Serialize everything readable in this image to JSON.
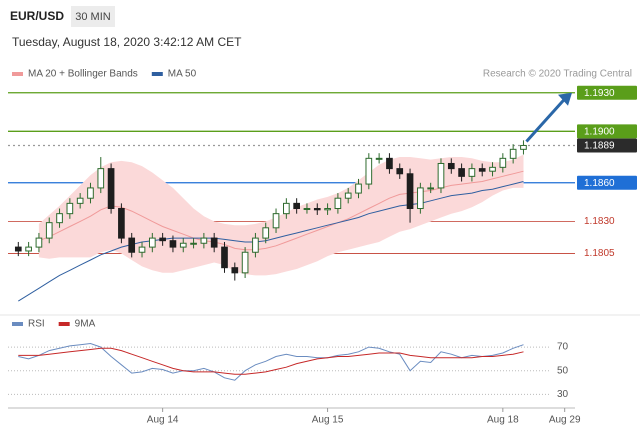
{
  "header": {
    "pair": "EUR/USD",
    "timeframe": "30 MIN",
    "timestamp": "Tuesday, August 18, 2020 3:42:12 AM CET"
  },
  "chart_data": [
    {
      "type": "candlestick",
      "annotation": "Research © 2020 Trading Central",
      "up_color": "#2e6b2e",
      "down_color": "#1e1e1e",
      "open": [
        1.181,
        1.1807,
        1.181,
        1.1817,
        1.1829,
        1.1836,
        1.1844,
        1.1848,
        1.1856,
        1.1871,
        1.184,
        1.1817,
        1.1806,
        1.181,
        1.1817,
        1.1815,
        1.181,
        1.1813,
        1.1813,
        1.1817,
        1.181,
        1.1794,
        1.179,
        1.1806,
        1.1817,
        1.1825,
        1.1836,
        1.1844,
        1.184,
        1.184,
        1.1839,
        1.184,
        1.1848,
        1.1852,
        1.1859,
        1.1879,
        1.1879,
        1.1871,
        1.1867,
        1.184,
        1.1856,
        1.1856,
        1.1875,
        1.1871,
        1.1865,
        1.1871,
        1.1869,
        1.1872,
        1.1879,
        1.1886
      ],
      "high": [
        1.1814,
        1.1814,
        1.1821,
        1.1833,
        1.184,
        1.1848,
        1.1852,
        1.186,
        1.188,
        1.1875,
        1.1844,
        1.1821,
        1.1814,
        1.1821,
        1.1821,
        1.1819,
        1.1817,
        1.1817,
        1.1821,
        1.1821,
        1.1814,
        1.1798,
        1.181,
        1.1821,
        1.1829,
        1.184,
        1.1848,
        1.1848,
        1.1844,
        1.1844,
        1.1844,
        1.1852,
        1.1856,
        1.1863,
        1.1883,
        1.1883,
        1.1883,
        1.1875,
        1.1871,
        1.186,
        1.186,
        1.1879,
        1.1879,
        1.1875,
        1.1875,
        1.1875,
        1.1876,
        1.1883,
        1.189,
        1.1893
      ],
      "low": [
        1.1803,
        1.1803,
        1.1806,
        1.1813,
        1.1825,
        1.1832,
        1.184,
        1.1844,
        1.1852,
        1.1836,
        1.1813,
        1.1802,
        1.1802,
        1.1806,
        1.1811,
        1.1806,
        1.1806,
        1.1809,
        1.1809,
        1.1806,
        1.179,
        1.1784,
        1.1786,
        1.1802,
        1.1813,
        1.1821,
        1.1832,
        1.1836,
        1.1836,
        1.1835,
        1.1835,
        1.1836,
        1.1844,
        1.1848,
        1.1855,
        1.1875,
        1.1867,
        1.1863,
        1.1829,
        1.1836,
        1.1852,
        1.1852,
        1.1867,
        1.1861,
        1.1861,
        1.1865,
        1.1865,
        1.1868,
        1.1875,
        1.1882
      ],
      "close": [
        1.1807,
        1.181,
        1.1817,
        1.1829,
        1.1836,
        1.1844,
        1.1848,
        1.1856,
        1.1871,
        1.184,
        1.1817,
        1.1806,
        1.181,
        1.1817,
        1.1815,
        1.181,
        1.1813,
        1.1813,
        1.1817,
        1.181,
        1.1794,
        1.179,
        1.1806,
        1.1817,
        1.1825,
        1.1836,
        1.1844,
        1.184,
        1.184,
        1.1839,
        1.184,
        1.1848,
        1.1852,
        1.1859,
        1.1879,
        1.1879,
        1.1871,
        1.1867,
        1.184,
        1.1856,
        1.1856,
        1.1875,
        1.1871,
        1.1865,
        1.1871,
        1.1869,
        1.1872,
        1.1879,
        1.1886,
        1.1889
      ],
      "series": [
        {
          "name": "MA 20 + Bollinger Bands",
          "color": "#f09a9a",
          "band_color": "#fbd9d9",
          "values": [
            null,
            null,
            1.1815,
            1.1818,
            1.1822,
            1.1826,
            1.183,
            1.1834,
            1.1839,
            1.1842,
            1.1841,
            1.1838,
            1.1834,
            1.183,
            1.1826,
            1.1823,
            1.182,
            1.1817,
            1.1815,
            1.1814,
            1.1812,
            1.1809,
            1.1808,
            1.1808,
            1.1809,
            1.1811,
            1.1814,
            1.1817,
            1.182,
            1.1823,
            1.1826,
            1.1829,
            1.1832,
            1.1836,
            1.184,
            1.1844,
            1.1848,
            1.1851,
            1.1852,
            1.1853,
            1.1854,
            1.1856,
            1.1858,
            1.1859,
            1.186,
            1.1861,
            1.1863,
            1.1865,
            1.1867,
            1.1869
          ],
          "upper": [
            null,
            null,
            1.1828,
            1.1835,
            1.1842,
            1.185,
            1.1858,
            1.1866,
            1.1872,
            1.1876,
            1.1877,
            1.1876,
            1.1873,
            1.1868,
            1.1862,
            1.1856,
            1.1848,
            1.184,
            1.1834,
            1.183,
            1.1828,
            1.1827,
            1.1827,
            1.1828,
            1.183,
            1.1833,
            1.1837,
            1.1841,
            1.1844,
            1.1847,
            1.1849,
            1.1852,
            1.1856,
            1.1862,
            1.1868,
            1.1874,
            1.1878,
            1.188,
            1.188,
            1.1879,
            1.1878,
            1.1879,
            1.188,
            1.188,
            1.1879,
            1.1877,
            1.1876,
            1.1876,
            1.1878,
            1.1882
          ],
          "lower": [
            null,
            null,
            1.1802,
            1.1801,
            1.1802,
            1.1802,
            1.1802,
            1.1802,
            1.1806,
            1.1808,
            1.1805,
            1.18,
            1.1795,
            1.1792,
            1.179,
            1.179,
            1.1792,
            1.1794,
            1.1796,
            1.1798,
            1.1796,
            1.1791,
            1.1789,
            1.1788,
            1.1788,
            1.1789,
            1.1791,
            1.1793,
            1.1796,
            1.1799,
            1.1803,
            1.1806,
            1.1808,
            1.181,
            1.1812,
            1.1814,
            1.1818,
            1.1822,
            1.1824,
            1.1827,
            1.183,
            1.1833,
            1.1836,
            1.1838,
            1.1841,
            1.1845,
            1.185,
            1.1854,
            1.1856,
            1.1856
          ]
        },
        {
          "name": "MA 50",
          "color": "#2f5fa0",
          "values": [
            1.1768,
            1.1773,
            1.1778,
            1.1783,
            1.1788,
            1.1792,
            1.1796,
            1.18,
            1.1804,
            1.1807,
            1.181,
            1.1812,
            1.1814,
            1.1815,
            1.1816,
            1.1817,
            1.1817,
            1.1817,
            1.1817,
            1.1817,
            1.1816,
            1.1815,
            1.1814,
            1.1814,
            1.1815,
            1.1817,
            1.1819,
            1.1821,
            1.1823,
            1.1825,
            1.1827,
            1.1829,
            1.1831,
            1.1833,
            1.1836,
            1.1838,
            1.184,
            1.1842,
            1.1843,
            1.1844,
            1.1846,
            1.1848,
            1.185,
            1.1851,
            1.1852,
            1.1854,
            1.1855,
            1.1857,
            1.1859,
            1.1861
          ]
        }
      ],
      "levels": [
        {
          "value": 1.193,
          "label": "1.1930",
          "color": "#5a9e1a",
          "style": "box"
        },
        {
          "value": 1.19,
          "label": "1.1900",
          "color": "#5a9e1a",
          "style": "box"
        },
        {
          "value": 1.1889,
          "label": "1.1889",
          "color": "#2b2b2b",
          "style": "current"
        },
        {
          "value": 1.186,
          "label": "1.1860",
          "color": "#1f6fd6",
          "style": "box"
        },
        {
          "value": 1.183,
          "label": "1.1830",
          "color": "#c0392b",
          "style": "text"
        },
        {
          "value": 1.1805,
          "label": "1.1805",
          "color": "#c0392b",
          "style": "text"
        }
      ],
      "ylim": [
        1.1765,
        1.1936
      ]
    },
    {
      "type": "line",
      "series": [
        {
          "name": "RSI",
          "color": "#6a8cc0",
          "values": [
            62,
            60,
            63,
            67,
            69,
            71,
            72,
            73,
            70,
            62,
            55,
            48,
            49,
            52,
            51,
            48,
            50,
            50,
            52,
            49,
            44,
            42,
            50,
            55,
            58,
            62,
            64,
            62,
            62,
            61,
            61,
            63,
            64,
            66,
            70,
            69,
            66,
            64,
            50,
            58,
            57,
            66,
            64,
            61,
            63,
            62,
            63,
            65,
            69,
            72
          ]
        },
        {
          "name": "9MA",
          "color": "#c62828",
          "values": [
            63,
            63,
            63,
            64,
            65,
            66,
            67,
            68,
            69,
            69,
            67,
            64,
            61,
            58,
            55,
            52,
            50,
            49,
            49,
            49,
            48,
            47,
            47,
            48,
            49,
            51,
            53,
            56,
            58,
            60,
            61,
            62,
            62,
            63,
            64,
            65,
            65,
            65,
            63,
            62,
            61,
            61,
            61,
            61,
            61,
            62,
            62,
            63,
            64,
            66
          ]
        }
      ],
      "ylim": [
        21,
        76
      ],
      "yticks": [
        30,
        50,
        70
      ],
      "grid": true,
      "xlim": [
        -1,
        54
      ],
      "xticks": [
        {
          "value": 14,
          "label": "Aug 14"
        },
        {
          "value": 30,
          "label": "Aug 15"
        },
        {
          "value": 47,
          "label": "Aug 18"
        },
        {
          "value": 53,
          "label": "Aug 29"
        }
      ]
    }
  ]
}
